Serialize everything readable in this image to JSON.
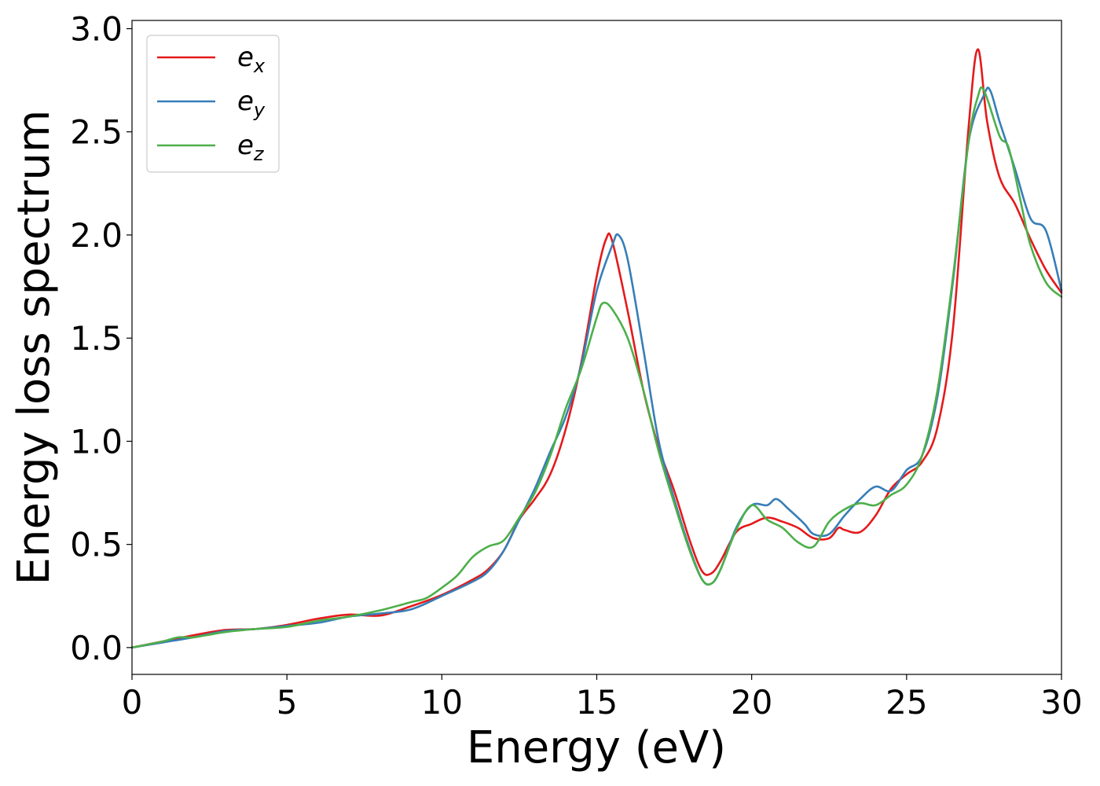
{
  "chart_data": {
    "type": "line",
    "title": "",
    "xlabel": "Energy (eV)",
    "ylabel": "Energy loss spectrum",
    "xlim": [
      0,
      30
    ],
    "ylim": [
      -0.13,
      3.04
    ],
    "xticks": [
      0,
      5,
      10,
      15,
      20,
      25,
      30
    ],
    "xtick_labels": [
      "0",
      "5",
      "10",
      "15",
      "20",
      "25",
      "30"
    ],
    "yticks": [
      0.0,
      0.5,
      1.0,
      1.5,
      2.0,
      2.5,
      3.0
    ],
    "ytick_labels": [
      "0.0",
      "0.5",
      "1.0",
      "1.5",
      "2.0",
      "2.5",
      "3.0"
    ],
    "grid": false,
    "legend_position": "top-left",
    "series": [
      {
        "name": "e",
        "subscript": "x",
        "color": "#e41a1c",
        "points": [
          [
            0,
            0
          ],
          [
            1,
            0.03
          ],
          [
            2,
            0.06
          ],
          [
            3,
            0.085
          ],
          [
            4,
            0.09
          ],
          [
            5,
            0.11
          ],
          [
            6,
            0.14
          ],
          [
            7,
            0.16
          ],
          [
            8,
            0.155
          ],
          [
            9,
            0.2
          ],
          [
            10,
            0.255
          ],
          [
            11,
            0.33
          ],
          [
            11.5,
            0.38
          ],
          [
            12,
            0.47
          ],
          [
            12.5,
            0.62
          ],
          [
            13,
            0.72
          ],
          [
            13.5,
            0.84
          ],
          [
            14,
            1.06
          ],
          [
            14.5,
            1.38
          ],
          [
            15,
            1.8
          ],
          [
            15.3,
            1.98
          ],
          [
            15.5,
            1.97
          ],
          [
            16,
            1.63
          ],
          [
            16.5,
            1.25
          ],
          [
            17,
            0.97
          ],
          [
            17.5,
            0.76
          ],
          [
            18,
            0.52
          ],
          [
            18.4,
            0.37
          ],
          [
            18.7,
            0.36
          ],
          [
            19,
            0.42
          ],
          [
            19.5,
            0.56
          ],
          [
            20,
            0.6
          ],
          [
            20.5,
            0.63
          ],
          [
            21,
            0.61
          ],
          [
            21.5,
            0.58
          ],
          [
            22,
            0.53
          ],
          [
            22.5,
            0.53
          ],
          [
            22.8,
            0.58
          ],
          [
            23,
            0.57
          ],
          [
            23.5,
            0.56
          ],
          [
            24,
            0.64
          ],
          [
            24.5,
            0.77
          ],
          [
            25,
            0.84
          ],
          [
            25.5,
            0.9
          ],
          [
            26,
            1.07
          ],
          [
            26.5,
            1.55
          ],
          [
            27,
            2.52
          ],
          [
            27.3,
            2.9
          ],
          [
            27.6,
            2.55
          ],
          [
            28,
            2.28
          ],
          [
            28.5,
            2.15
          ],
          [
            29,
            1.98
          ],
          [
            29.5,
            1.83
          ],
          [
            30,
            1.72
          ]
        ]
      },
      {
        "name": "e",
        "subscript": "y",
        "color": "#377eb8",
        "points": [
          [
            0,
            0
          ],
          [
            1,
            0.025
          ],
          [
            2,
            0.05
          ],
          [
            3,
            0.08
          ],
          [
            4,
            0.09
          ],
          [
            5,
            0.105
          ],
          [
            6,
            0.12
          ],
          [
            7,
            0.15
          ],
          [
            8,
            0.165
          ],
          [
            9,
            0.185
          ],
          [
            10,
            0.25
          ],
          [
            11,
            0.32
          ],
          [
            11.5,
            0.37
          ],
          [
            12,
            0.47
          ],
          [
            12.5,
            0.62
          ],
          [
            13,
            0.77
          ],
          [
            13.5,
            0.95
          ],
          [
            14,
            1.12
          ],
          [
            14.5,
            1.37
          ],
          [
            15,
            1.73
          ],
          [
            15.5,
            1.95
          ],
          [
            15.7,
            2.0
          ],
          [
            16,
            1.88
          ],
          [
            16.5,
            1.45
          ],
          [
            17,
            1.0
          ],
          [
            17.5,
            0.72
          ],
          [
            18,
            0.48
          ],
          [
            18.4,
            0.33
          ],
          [
            18.7,
            0.31
          ],
          [
            19,
            0.38
          ],
          [
            19.5,
            0.58
          ],
          [
            20,
            0.69
          ],
          [
            20.5,
            0.69
          ],
          [
            20.8,
            0.72
          ],
          [
            21.2,
            0.67
          ],
          [
            21.7,
            0.6
          ],
          [
            22,
            0.55
          ],
          [
            22.5,
            0.55
          ],
          [
            23,
            0.64
          ],
          [
            23.5,
            0.72
          ],
          [
            24,
            0.78
          ],
          [
            24.5,
            0.76
          ],
          [
            25,
            0.86
          ],
          [
            25.5,
            0.93
          ],
          [
            26,
            1.22
          ],
          [
            26.5,
            1.78
          ],
          [
            27,
            2.45
          ],
          [
            27.5,
            2.68
          ],
          [
            27.7,
            2.7
          ],
          [
            28,
            2.55
          ],
          [
            28.5,
            2.32
          ],
          [
            29,
            2.08
          ],
          [
            29.5,
            2.02
          ],
          [
            30,
            1.73
          ]
        ]
      },
      {
        "name": "e",
        "subscript": "z",
        "color": "#4daf4a",
        "points": [
          [
            0,
            0
          ],
          [
            1,
            0.03
          ],
          [
            1.5,
            0.05
          ],
          [
            2,
            0.05
          ],
          [
            3,
            0.075
          ],
          [
            4,
            0.09
          ],
          [
            5,
            0.1
          ],
          [
            6,
            0.13
          ],
          [
            7,
            0.15
          ],
          [
            8,
            0.18
          ],
          [
            9,
            0.22
          ],
          [
            9.5,
            0.24
          ],
          [
            10,
            0.29
          ],
          [
            10.5,
            0.35
          ],
          [
            11,
            0.44
          ],
          [
            11.5,
            0.49
          ],
          [
            12,
            0.52
          ],
          [
            12.5,
            0.63
          ],
          [
            13,
            0.75
          ],
          [
            13.5,
            0.93
          ],
          [
            14,
            1.16
          ],
          [
            14.5,
            1.35
          ],
          [
            15,
            1.6
          ],
          [
            15.2,
            1.67
          ],
          [
            15.5,
            1.64
          ],
          [
            16,
            1.5
          ],
          [
            16.5,
            1.25
          ],
          [
            17,
            0.95
          ],
          [
            17.5,
            0.7
          ],
          [
            18,
            0.47
          ],
          [
            18.4,
            0.33
          ],
          [
            18.7,
            0.31
          ],
          [
            19,
            0.38
          ],
          [
            19.5,
            0.57
          ],
          [
            20,
            0.69
          ],
          [
            20.5,
            0.62
          ],
          [
            21,
            0.58
          ],
          [
            21.5,
            0.51
          ],
          [
            22,
            0.49
          ],
          [
            22.5,
            0.61
          ],
          [
            23,
            0.67
          ],
          [
            23.5,
            0.7
          ],
          [
            24,
            0.69
          ],
          [
            24.5,
            0.74
          ],
          [
            25,
            0.79
          ],
          [
            25.5,
            0.93
          ],
          [
            26,
            1.25
          ],
          [
            26.5,
            1.8
          ],
          [
            27,
            2.45
          ],
          [
            27.3,
            2.67
          ],
          [
            27.5,
            2.7
          ],
          [
            28,
            2.48
          ],
          [
            28.3,
            2.42
          ],
          [
            28.7,
            2.15
          ],
          [
            29,
            1.95
          ],
          [
            29.5,
            1.77
          ],
          [
            30,
            1.7
          ]
        ]
      }
    ]
  }
}
